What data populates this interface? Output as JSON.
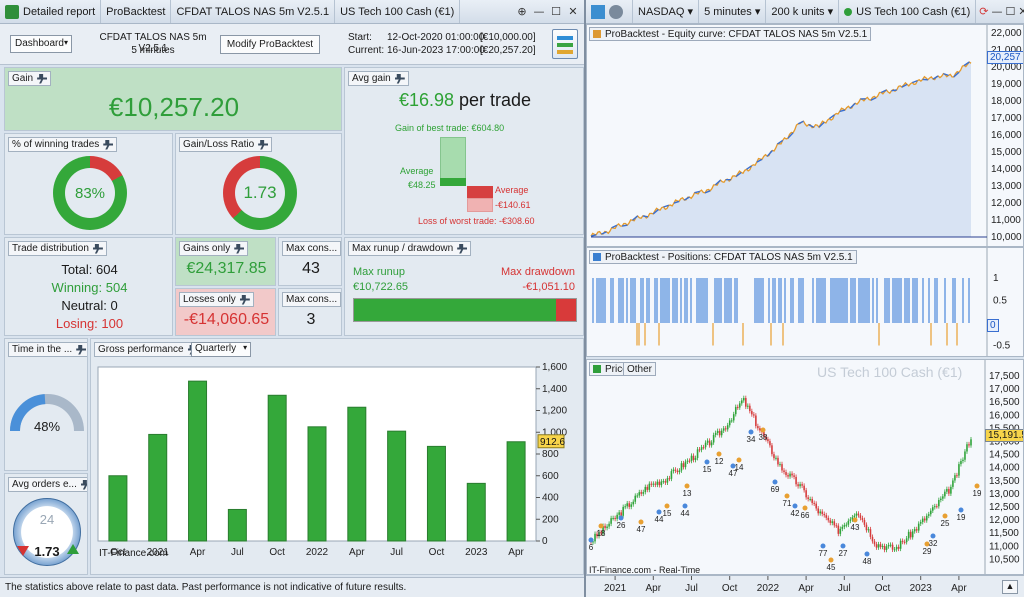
{
  "left_window": {
    "tabs": [
      "Detailed report",
      "ProBacktest",
      "CFDAT TALOS NAS 5m V2.5.1",
      "US Tech 100 Cash (€1)"
    ],
    "controls": [
      "⊕",
      "—",
      "☐",
      "✕"
    ]
  },
  "header": {
    "dashboard": "Dashboard",
    "strategy_name": "CFDAT TALOS NAS 5m V2.5.1",
    "timeframe": "5 minutes",
    "modify_button": "Modify ProBacktest",
    "start_label": "Start:",
    "start_date": "12-Oct-2020 01:00:00",
    "start_value": "[€10,000.00]",
    "current_label": "Current:",
    "current_date": "16-Jun-2023 17:00:00",
    "current_value": "[€20,257.20]"
  },
  "gain": {
    "label": "Gain",
    "value": "€10,257.20"
  },
  "avg_gain": {
    "label": "Avg gain",
    "value": "€16.98",
    "suffix": "per trade",
    "best_label": "Gain of best trade: €604.80",
    "avg_pos_label": "Average",
    "avg_pos_value": "€48.25",
    "avg_neg_label": "Average",
    "avg_neg_value": "-€140.61",
    "worst_label": "Loss of worst trade: -€308.60"
  },
  "winning": {
    "label": "% of winning trades",
    "value": "83%",
    "fraction": 0.83
  },
  "gl_ratio": {
    "label": "Gain/Loss Ratio",
    "value": "1.73",
    "fraction": 0.63
  },
  "distribution": {
    "label": "Trade distribution",
    "total": "Total: 604",
    "winning": "Winning: 504",
    "neutral": "Neutral: 0",
    "losing": "Losing: 100"
  },
  "gains_only": {
    "label": "Gains only",
    "value": "€24,317.85"
  },
  "losses_only": {
    "label": "Losses only",
    "value": "-€14,060.65"
  },
  "max_cons_1": {
    "label": "Max cons...",
    "value": "43"
  },
  "max_cons_2": {
    "label": "Max cons...",
    "value": "3"
  },
  "runup": {
    "label": "Max runup / drawdown",
    "runup_label": "Max runup",
    "runup_value": "€10,722.65",
    "drawdown_label": "Max drawdown",
    "drawdown_value": "-€1,051.10",
    "runup_fraction": 0.91
  },
  "time_market": {
    "label": "Time in the ...",
    "value": "48%",
    "fraction": 0.48
  },
  "avg_orders": {
    "label": "Avg orders e...",
    "dial": "24",
    "value": "1.73"
  },
  "gross": {
    "label": "Gross performance",
    "period": "Quarterly",
    "watermark": "IT-Finance.com",
    "last_value": "912.6",
    "colors": {
      "bar": "#34a83a"
    }
  },
  "footer_text": "The statistics above relate to past data. Past performance is not indicative of future results.",
  "right_window": {
    "market": "NASDAQ",
    "interval": "5 minutes",
    "units": "200 k units",
    "instrument": "US Tech 100 Cash (€1)"
  },
  "equity": {
    "title": "ProBacktest - Equity curve: CFDAT TALOS NAS 5m V2.5.1",
    "last": "20,257"
  },
  "positions": {
    "title": "ProBacktest - Positions: CFDAT TALOS NAS 5m V2.5.1",
    "last": "0"
  },
  "price": {
    "tab_price": "Price",
    "tab_other": "Other",
    "watermark": "US Tech 100 Cash (€1)",
    "source": "IT-Finance.com - Real-Time",
    "last": "15,191.5"
  },
  "time_axis": [
    "2021",
    "Apr",
    "Jul",
    "Oct",
    "2022",
    "Apr",
    "Jul",
    "Oct",
    "2023",
    "Apr"
  ],
  "trade_markers": [
    "6",
    "18",
    "26",
    "47",
    "44",
    "15",
    "44",
    "13",
    "15",
    "12",
    "47",
    "14",
    "34",
    "38",
    "69",
    "71",
    "42",
    "66",
    "77",
    "45",
    "27",
    "43",
    "48",
    "29",
    "32",
    "25",
    "19",
    "19"
  ],
  "chart_data": [
    {
      "type": "bar",
      "title": "Gross performance",
      "categories": [
        "Oct",
        "2021",
        "Apr",
        "Jul",
        "Oct",
        "2022",
        "Apr",
        "Jul",
        "Oct",
        "2023",
        "Apr"
      ],
      "values": [
        600,
        980,
        1470,
        290,
        1340,
        1050,
        1230,
        1010,
        870,
        530,
        912.6
      ],
      "ylim": [
        0,
        1600
      ],
      "yticks": [
        0,
        200,
        400,
        600,
        800,
        1000,
        1200,
        1400,
        1600
      ],
      "ytick_labels": [
        "0",
        "200",
        "400",
        "600",
        "800",
        "1,000",
        "1,200",
        "1,400",
        "1,600"
      ]
    },
    {
      "type": "line",
      "title": "ProBacktest - Equity curve: CFDAT TALOS NAS 5m V2.5.1",
      "ylim": [
        10000,
        22000
      ],
      "ytick_labels": [
        "10,000",
        "11,000",
        "12,000",
        "13,000",
        "14,000",
        "15,000",
        "16,000",
        "17,000",
        "18,000",
        "19,000",
        "20,000",
        "21,000",
        "22,000"
      ],
      "x": [
        0,
        0.05,
        0.1,
        0.15,
        0.2,
        0.25,
        0.3,
        0.35,
        0.4,
        0.45,
        0.5,
        0.55,
        0.6,
        0.65,
        0.7,
        0.75,
        0.8,
        0.85,
        0.9,
        0.95,
        1.0
      ],
      "y": [
        10050,
        10400,
        10900,
        11300,
        11800,
        12300,
        12700,
        13300,
        13800,
        14600,
        15500,
        16700,
        16500,
        17300,
        17900,
        18300,
        18700,
        19100,
        19400,
        19500,
        20257
      ]
    },
    {
      "type": "line",
      "title": "Price",
      "ylim": [
        10250,
        17500
      ],
      "ytick_labels": [
        "10,500",
        "11,000",
        "11,500",
        "12,000",
        "12,500",
        "13,000",
        "13,500",
        "14,000",
        "14,500",
        "15,000",
        "15,500",
        "16,000",
        "16,500",
        "17,000",
        "17,500"
      ],
      "x": [
        0,
        0.05,
        0.1,
        0.15,
        0.2,
        0.25,
        0.3,
        0.35,
        0.4,
        0.45,
        0.5,
        0.55,
        0.6,
        0.65,
        0.7,
        0.75,
        0.8,
        0.85,
        0.9,
        0.95,
        1.0
      ],
      "y": [
        11200,
        11900,
        12600,
        13300,
        13600,
        14200,
        14800,
        15500,
        16600,
        15300,
        14000,
        13300,
        12300,
        11600,
        12400,
        11100,
        10900,
        11600,
        12400,
        13300,
        15191
      ]
    }
  ]
}
